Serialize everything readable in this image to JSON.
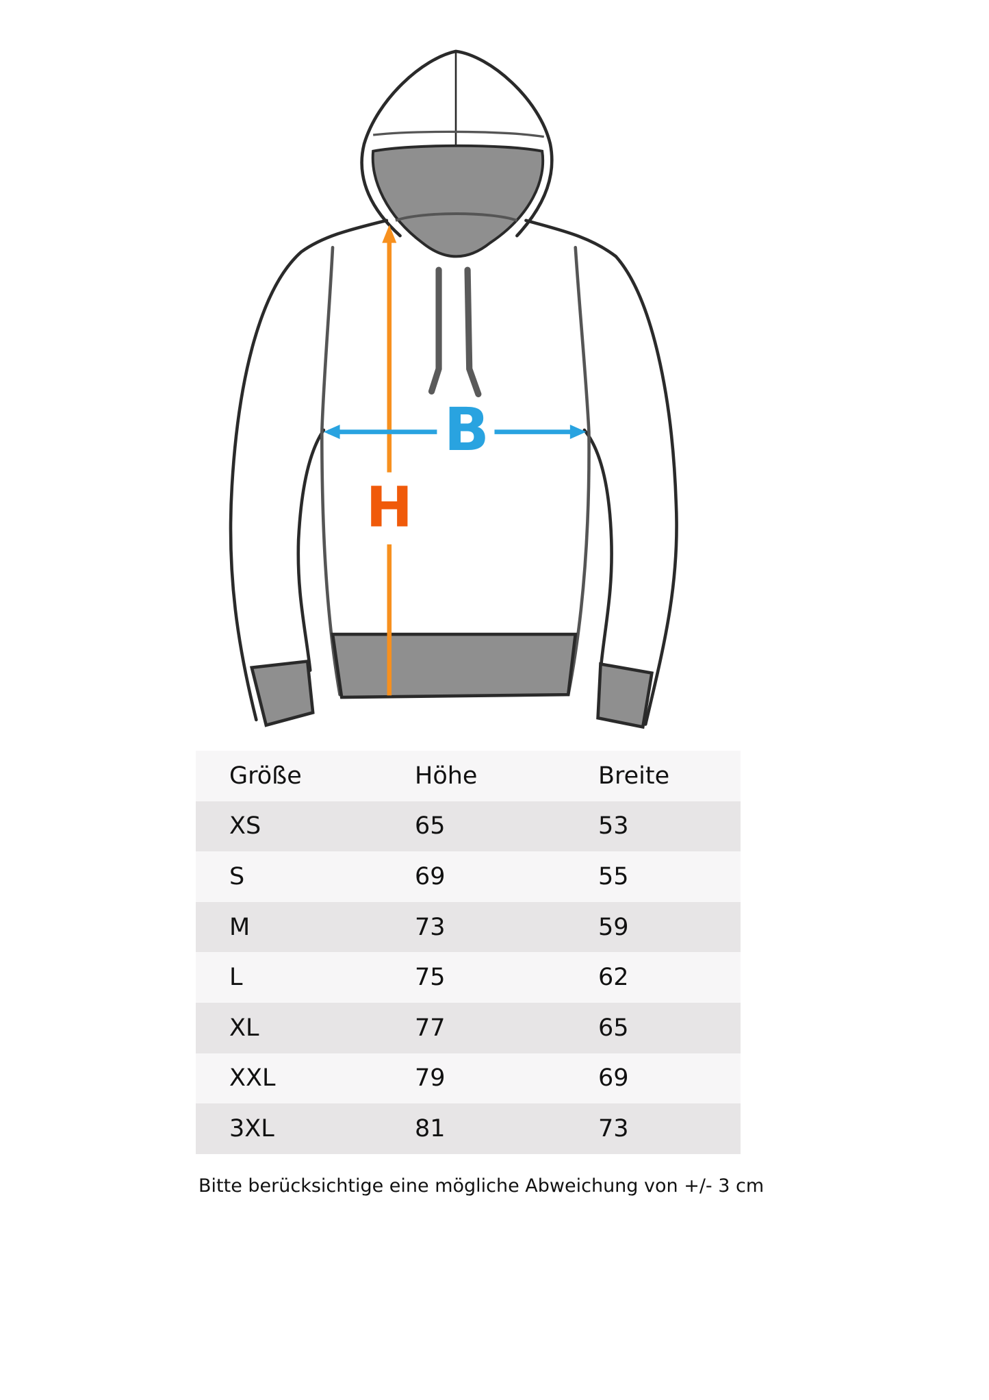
{
  "diagram": {
    "height_label": "H",
    "width_label": "B",
    "colors": {
      "height_arrow": "#f7901e",
      "height_label": "#f05a0a",
      "width_arrow": "#29a3e0",
      "outline": "#2a2a2a",
      "fill_gray": "#8f8f8f"
    }
  },
  "table": {
    "headers": [
      "Größe",
      "Höhe",
      "Breite"
    ],
    "rows": [
      [
        "XS",
        "65",
        "53"
      ],
      [
        "S",
        "69",
        "55"
      ],
      [
        "M",
        "73",
        "59"
      ],
      [
        "L",
        "75",
        "62"
      ],
      [
        "XL",
        "77",
        "65"
      ],
      [
        "XXL",
        "79",
        "69"
      ],
      [
        "3XL",
        "81",
        "73"
      ]
    ]
  },
  "note": "Bitte berücksichtige eine mögliche Abweichung von +/- 3 cm"
}
